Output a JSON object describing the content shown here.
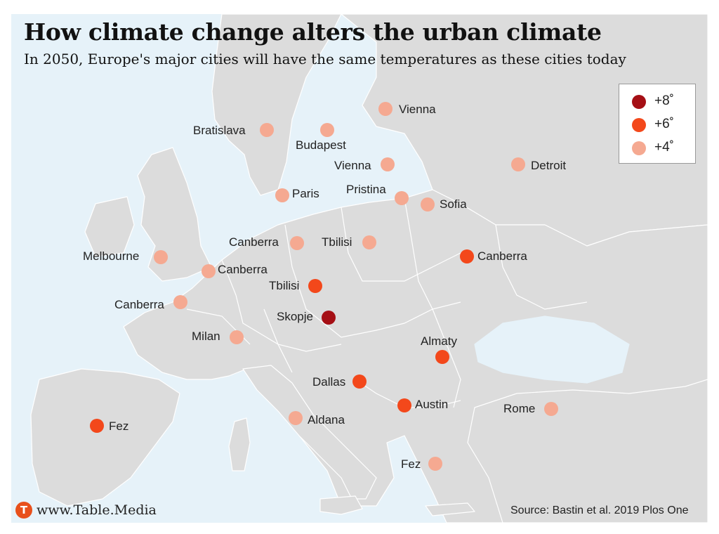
{
  "header": {
    "title": "How climate change alters the urban climate",
    "subtitle": "In 2050, Europe's major cities will have the same temperatures as these cities today"
  },
  "legend": [
    {
      "label": "+8˚",
      "color": "#a50f15"
    },
    {
      "label": "+6˚",
      "color": "#f3481b"
    },
    {
      "label": "+4˚",
      "color": "#f5a991"
    }
  ],
  "cities": [
    {
      "label": "Vienna",
      "level": "+4˚"
    },
    {
      "label": "Bratislava",
      "level": "+4˚"
    },
    {
      "label": "Budapest",
      "level": "+4˚"
    },
    {
      "label": "Vienna",
      "level": "+4˚"
    },
    {
      "label": "Detroit",
      "level": "+4˚"
    },
    {
      "label": "Paris",
      "level": "+4˚"
    },
    {
      "label": "Pristina",
      "level": "+4˚"
    },
    {
      "label": "Sofia",
      "level": "+4˚"
    },
    {
      "label": "Canberra",
      "level": "+4˚"
    },
    {
      "label": "Tbilisi",
      "level": "+4˚"
    },
    {
      "label": "Melbourne",
      "level": "+4˚"
    },
    {
      "label": "Canberra",
      "level": "+4˚"
    },
    {
      "label": "Canberra",
      "level": "+6˚"
    },
    {
      "label": "Tbilisi",
      "level": "+6˚"
    },
    {
      "label": "Canberra",
      "level": "+4˚"
    },
    {
      "label": "Skopje",
      "level": "+8˚"
    },
    {
      "label": "Milan",
      "level": "+4˚"
    },
    {
      "label": "Almaty",
      "level": "+6˚"
    },
    {
      "label": "Dallas",
      "level": "+6˚"
    },
    {
      "label": "Austin",
      "level": "+6˚"
    },
    {
      "label": "Rome",
      "level": "+4˚"
    },
    {
      "label": "Fez",
      "level": "+6˚"
    },
    {
      "label": "Aldana",
      "level": "+4˚"
    },
    {
      "label": "Fez",
      "level": "+4˚"
    }
  ],
  "footer": {
    "brand_logo": "T",
    "brand": "www.Table.Media",
    "source": "Source:  Bastin et al. 2019 Plos One"
  }
}
